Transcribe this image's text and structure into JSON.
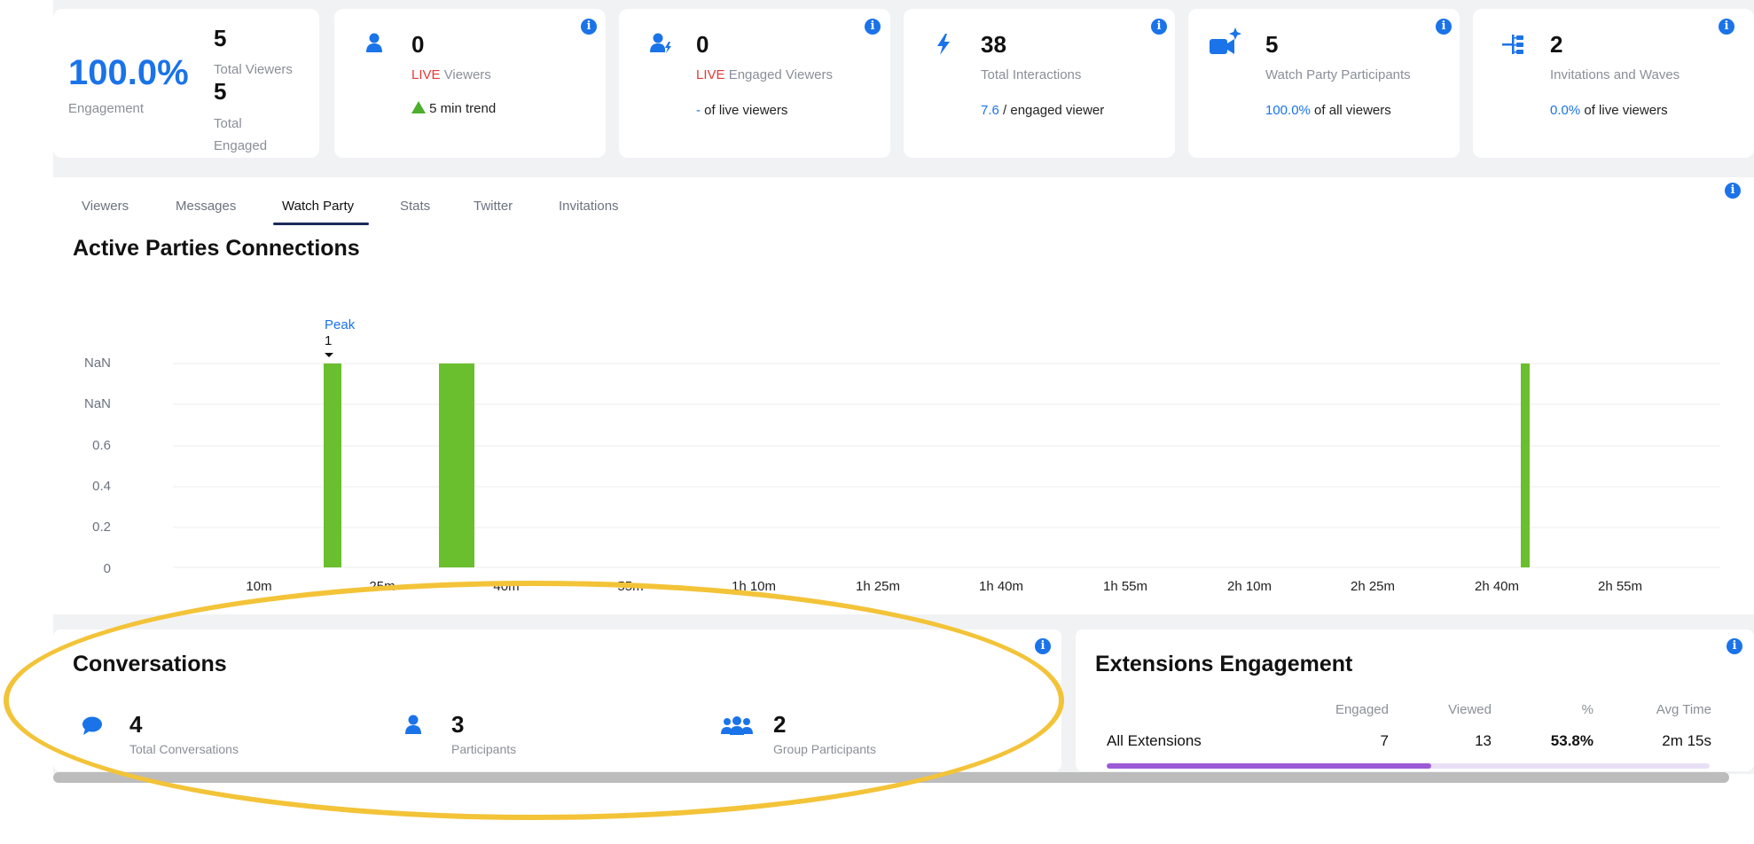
{
  "stats": {
    "engagement": {
      "percent": "100.0%",
      "label": "Engagement",
      "total_viewers": "5",
      "total_viewers_label": "Total Viewers",
      "total_engaged": "5",
      "total_engaged_label_1": "Total",
      "total_engaged_label_2": "Engaged"
    },
    "viewers": {
      "value": "0",
      "live": "LIVE",
      "label": "Viewers",
      "trend": "5 min trend"
    },
    "engaged": {
      "value": "0",
      "live": "LIVE",
      "label": "Engaged Viewers",
      "dash": "-",
      "suffix": "of live viewers"
    },
    "interactions": {
      "value": "38",
      "label": "Total Interactions",
      "ratio": "7.6",
      "suffix": "/ engaged viewer"
    },
    "watch_party": {
      "value": "5",
      "label": "Watch Party Participants",
      "pct": "100.0%",
      "suffix": "of all viewers"
    },
    "invitations": {
      "value": "2",
      "label": "Invitations and Waves",
      "pct": "0.0%",
      "suffix": "of live viewers"
    }
  },
  "tabs": [
    "Viewers",
    "Messages",
    "Watch Party",
    "Stats",
    "Twitter",
    "Invitations"
  ],
  "active_tab": "Watch Party",
  "chart_title": "Active Parties Connections",
  "chart_data": {
    "type": "bar",
    "peak_label": "Peak",
    "peak_value": "1",
    "y_ticks": [
      "NaN",
      "NaN",
      "0.6",
      "0.4",
      "0.2",
      "0"
    ],
    "x_ticks": [
      "10m",
      "25m",
      "40m",
      "55m",
      "1h 10m",
      "1h 25m",
      "1h 40m",
      "1h 55m",
      "2h 10m",
      "2h 25m",
      "2h 40m",
      "2h 55m"
    ],
    "bars": [
      {
        "x": "~20m",
        "value": 1
      },
      {
        "x": "~35m",
        "value": 1
      },
      {
        "x": "~2h 45m",
        "value": 1
      }
    ],
    "bar_color": "#6abf2e"
  },
  "conversations": {
    "title": "Conversations",
    "items": [
      {
        "value": "4",
        "label": "Total Conversations",
        "icon": "chat-bubble-icon"
      },
      {
        "value": "3",
        "label": "Participants",
        "icon": "person-icon"
      },
      {
        "value": "2",
        "label": "Group Participants",
        "icon": "group-icon"
      }
    ]
  },
  "extensions": {
    "title": "Extensions Engagement",
    "headers": [
      "Engaged",
      "Viewed",
      "%",
      "Avg Time"
    ],
    "row": {
      "name": "All Extensions",
      "engaged": "7",
      "viewed": "13",
      "pct": "53.8%",
      "avg_time": "2m 15s"
    },
    "progress_fraction": 0.538
  },
  "colors": {
    "accent": "#1a73e8",
    "live": "#e53935",
    "bar": "#6abf2e",
    "highlight": "#f3c338",
    "purple": "#9c5ad6"
  }
}
